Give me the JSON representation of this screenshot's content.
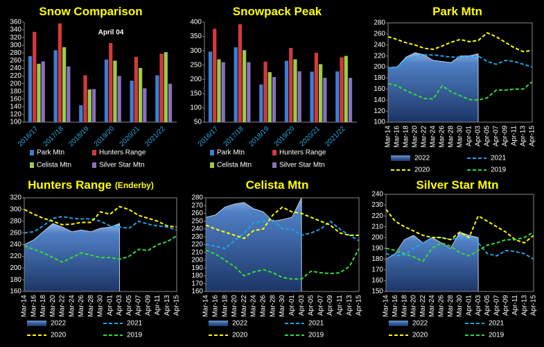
{
  "chart_data": [
    {
      "type": "bar",
      "title": "Snow Comparison",
      "annotation": "April 04",
      "categories": [
        "2016/17",
        "2017/18",
        "2018/19",
        "2019/20",
        "2020/21",
        "2021/22"
      ],
      "ylim": [
        100,
        360
      ],
      "yticks": [
        100,
        120,
        140,
        160,
        180,
        200,
        220,
        240,
        260,
        280,
        300,
        320,
        340,
        360
      ],
      "series": [
        {
          "name": "Park Mtn",
          "color": "#3c7fd6",
          "values": [
            272,
            287,
            144,
            263,
            208,
            222
          ]
        },
        {
          "name": "Hunters Range",
          "color": "#d33a3a",
          "values": [
            335,
            357,
            222,
            306,
            270,
            278
          ]
        },
        {
          "name": "Celista Mtn",
          "color": "#9ccb4c",
          "values": [
            252,
            295,
            185,
            260,
            241,
            282
          ]
        },
        {
          "name": "Silver Star Mtn",
          "color": "#8a6fc0",
          "values": [
            258,
            245,
            186,
            220,
            188,
            200
          ]
        }
      ]
    },
    {
      "type": "bar",
      "title": "Snowpack Peak",
      "categories": [
        "2016/17",
        "2017/18",
        "2018/19",
        "2019/20",
        "2020/21",
        "2021/22"
      ],
      "ylim": [
        50,
        400
      ],
      "yticks": [
        50,
        100,
        150,
        200,
        250,
        300,
        350,
        400
      ],
      "series": [
        {
          "name": "Park Mtn",
          "color": "#3c7fd6",
          "values": [
            297,
            312,
            182,
            265,
            227,
            228
          ]
        },
        {
          "name": "Hunters Range",
          "color": "#d33a3a",
          "values": [
            377,
            393,
            262,
            310,
            293,
            277
          ]
        },
        {
          "name": "Celista Mtn",
          "color": "#9ccb4c",
          "values": [
            270,
            302,
            225,
            270,
            253,
            282
          ]
        },
        {
          "name": "Silver Star Mtn",
          "color": "#8a6fc0",
          "values": [
            260,
            260,
            208,
            228,
            205,
            205
          ]
        }
      ]
    },
    {
      "type": "line",
      "title": "Park Mtn",
      "categories": [
        "Mar-14",
        "Mar-16",
        "Mar-18",
        "Mar-20",
        "Mar-22",
        "Mar-24",
        "Mar-26",
        "Mar-28",
        "Mar-30",
        "Apr-01",
        "Apr-03",
        "Apr-05",
        "Apr-07",
        "Apr-09",
        "Apr-11",
        "Apr-13",
        "Apr-15"
      ],
      "ylim": [
        100,
        280
      ],
      "yticks": [
        100,
        120,
        140,
        160,
        180,
        200,
        220,
        240,
        260,
        280
      ],
      "series": [
        {
          "name": "2022",
          "color": "#5b8ed0",
          "kind": "area",
          "values": [
            199,
            200,
            218,
            226,
            222,
            212,
            210,
            208,
            220,
            220,
            224,
            null,
            null,
            null,
            null,
            null,
            null
          ]
        },
        {
          "name": "2021",
          "color": "#1ea5e8",
          "values": [
            198,
            200,
            212,
            218,
            222,
            222,
            220,
            218,
            218,
            218,
            220,
            210,
            205,
            212,
            210,
            205,
            200
          ]
        },
        {
          "name": "2020",
          "color": "#ffff00",
          "values": [
            255,
            250,
            244,
            240,
            234,
            232,
            238,
            245,
            250,
            246,
            248,
            262,
            255,
            245,
            235,
            228,
            230
          ]
        },
        {
          "name": "2019",
          "color": "#33dd33",
          "values": [
            170,
            166,
            157,
            150,
            143,
            142,
            166,
            155,
            148,
            141,
            140,
            144,
            158,
            158,
            160,
            160,
            173
          ]
        }
      ]
    },
    {
      "type": "line",
      "title": "Hunters Range",
      "subtitle": "(Enderby)",
      "categories": [
        "Mar-14",
        "Mar-16",
        "Mar-18",
        "Mar-20",
        "Mar-22",
        "Mar-24",
        "Mar-26",
        "Mar-28",
        "Mar-30",
        "Apr-01",
        "Apr-03",
        "Apr-05",
        "Apr-07",
        "Apr-09",
        "Apr-11",
        "Apr-13",
        "Apr-15"
      ],
      "ylim": [
        160,
        320
      ],
      "yticks": [
        160,
        180,
        200,
        220,
        240,
        260,
        280,
        300,
        320
      ],
      "series": [
        {
          "name": "2022",
          "color": "#5b8ed0",
          "kind": "area",
          "values": [
            240,
            248,
            262,
            276,
            270,
            262,
            265,
            262,
            268,
            270,
            276,
            null,
            null,
            null,
            null,
            null,
            null
          ]
        },
        {
          "name": "2021",
          "color": "#1ea5e8",
          "values": [
            260,
            262,
            272,
            285,
            288,
            285,
            284,
            284,
            280,
            272,
            270,
            268,
            280,
            275,
            272,
            270,
            265
          ]
        },
        {
          "name": "2020",
          "color": "#ffff00",
          "values": [
            300,
            292,
            285,
            280,
            274,
            275,
            278,
            278,
            296,
            292,
            305,
            300,
            290,
            285,
            280,
            272,
            270
          ]
        },
        {
          "name": "2019",
          "color": "#33dd33",
          "values": [
            238,
            232,
            226,
            218,
            210,
            218,
            226,
            222,
            218,
            218,
            215,
            220,
            232,
            230,
            240,
            245,
            255
          ]
        }
      ]
    },
    {
      "type": "line",
      "title": "Celista Mtn",
      "categories": [
        "Mar-14",
        "Mar-16",
        "Mar-18",
        "Mar-20",
        "Mar-22",
        "Mar-24",
        "Mar-26",
        "Mar-28",
        "Mar-30",
        "Apr-01",
        "Apr-03",
        "Apr-05",
        "Apr-07",
        "Apr-09",
        "Apr-11",
        "Apr-13",
        "Apr-15"
      ],
      "ylim": [
        160,
        280
      ],
      "yticks": [
        160,
        170,
        180,
        190,
        200,
        210,
        220,
        230,
        240,
        250,
        260,
        270,
        280
      ],
      "series": [
        {
          "name": "2022",
          "color": "#5b8ed0",
          "kind": "area",
          "values": [
            255,
            258,
            268,
            272,
            274,
            266,
            262,
            250,
            252,
            255,
            280,
            null,
            null,
            null,
            null,
            null,
            null
          ]
        },
        {
          "name": "2021",
          "color": "#1ea5e8",
          "values": [
            220,
            218,
            215,
            225,
            235,
            248,
            250,
            252,
            240,
            240,
            232,
            235,
            240,
            250,
            240,
            232,
            225
          ]
        },
        {
          "name": "2020",
          "color": "#ffff00",
          "values": [
            245,
            240,
            236,
            232,
            228,
            238,
            240,
            258,
            268,
            262,
            260,
            255,
            250,
            245,
            235,
            232,
            232
          ]
        },
        {
          "name": "2019",
          "color": "#33dd33",
          "values": [
            213,
            208,
            200,
            192,
            180,
            185,
            188,
            184,
            178,
            176,
            176,
            186,
            184,
            183,
            184,
            192,
            215
          ]
        }
      ]
    },
    {
      "type": "line",
      "title": "Silver Star Mtn",
      "categories": [
        "Mar-14",
        "Mar-16",
        "Mar-18",
        "Mar-20",
        "Mar-22",
        "Mar-24",
        "Mar-26",
        "Mar-28",
        "Mar-30",
        "Apr-01",
        "Apr-03",
        "Apr-05",
        "Apr-07",
        "Apr-09",
        "Apr-11",
        "Apr-13",
        "Apr-15"
      ],
      "ylim": [
        150,
        240
      ],
      "yticks": [
        150,
        160,
        170,
        180,
        190,
        200,
        210,
        220,
        230,
        240
      ],
      "series": [
        {
          "name": "2022",
          "color": "#5b8ed0",
          "kind": "area",
          "values": [
            180,
            185,
            198,
            202,
            195,
            200,
            195,
            190,
            205,
            202,
            200,
            null,
            null,
            null,
            null,
            null,
            null
          ]
        },
        {
          "name": "2021",
          "color": "#1ea5e8",
          "values": [
            185,
            183,
            184,
            190,
            195,
            200,
            200,
            198,
            200,
            200,
            195,
            185,
            183,
            188,
            187,
            185,
            180
          ]
        },
        {
          "name": "2020",
          "color": "#ffff00",
          "values": [
            226,
            215,
            210,
            206,
            202,
            200,
            200,
            198,
            205,
            200,
            220,
            215,
            210,
            205,
            198,
            195,
            202
          ]
        },
        {
          "name": "2019",
          "color": "#33dd33",
          "values": [
            190,
            188,
            185,
            182,
            178,
            190,
            195,
            192,
            186,
            183,
            188,
            193,
            195,
            198,
            198,
            200,
            205
          ]
        }
      ]
    }
  ]
}
